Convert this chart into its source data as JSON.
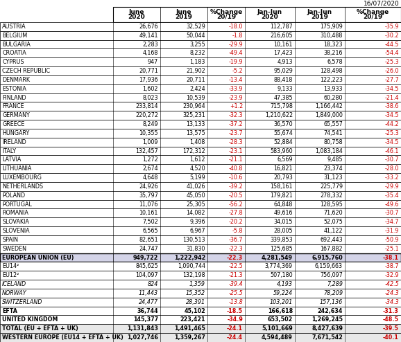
{
  "date_label": "16/07/2020",
  "col_headers_line1": [
    "June",
    "June",
    "%Change",
    "Jan-Jun",
    "Jan-Jun",
    "%Change"
  ],
  "col_headers_line2": [
    "2020",
    "2019",
    "20/19",
    "2020",
    "2019",
    "20/19"
  ],
  "rows": [
    [
      "AUSTRIA",
      "26,676",
      "32,529",
      "-18.0",
      "112,787",
      "175,909",
      "-35.9"
    ],
    [
      "BELGIUM",
      "49,141",
      "50,044",
      "-1.8",
      "216,605",
      "310,488",
      "-30.2"
    ],
    [
      "BULGARIA",
      "2,283",
      "3,255",
      "-29.9",
      "10,161",
      "18,323",
      "-44.5"
    ],
    [
      "CROATIA",
      "4,168",
      "8,232",
      "-49.4",
      "17,423",
      "38,216",
      "-54.4"
    ],
    [
      "CYPRUS",
      "947",
      "1,183",
      "-19.9",
      "4,913",
      "6,578",
      "-25.3"
    ],
    [
      "CZECH REPUBLIC",
      "20,771",
      "21,902",
      "-5.2",
      "95,029",
      "128,498",
      "-26.0"
    ],
    [
      "DENMARK",
      "17,936",
      "20,711",
      "-13.4",
      "88,418",
      "122,223",
      "-27.7"
    ],
    [
      "ESTONIA",
      "1,602",
      "2,424",
      "-33.9",
      "9,133",
      "13,933",
      "-34.5"
    ],
    [
      "FINLAND",
      "8,023",
      "10,539",
      "-23.9",
      "47,385",
      "60,280",
      "-21.4"
    ],
    [
      "FRANCE",
      "233,814",
      "230,964",
      "+1.2",
      "715,798",
      "1,166,442",
      "-38.6"
    ],
    [
      "GERMANY",
      "220,272",
      "325,231",
      "-32.3",
      "1,210,622",
      "1,849,000",
      "-34.5"
    ],
    [
      "GREECE",
      "8,249",
      "13,133",
      "-37.2",
      "36,570",
      "65,557",
      "-44.2"
    ],
    [
      "HUNGARY",
      "10,355",
      "13,575",
      "-23.7",
      "55,674",
      "74,541",
      "-25.3"
    ],
    [
      "IRELAND",
      "1,009",
      "1,408",
      "-28.3",
      "52,884",
      "80,758",
      "-34.5"
    ],
    [
      "ITALY",
      "132,457",
      "172,312",
      "-23.1",
      "583,960",
      "1,083,184",
      "-46.1"
    ],
    [
      "LATVIA",
      "1,272",
      "1,612",
      "-21.1",
      "6,569",
      "9,485",
      "-30.7"
    ],
    [
      "LITHUANIA",
      "2,674",
      "4,520",
      "-40.8",
      "16,821",
      "23,374",
      "-28.0"
    ],
    [
      "LUXEMBOURG",
      "4,648",
      "5,199",
      "-10.6",
      "20,793",
      "31,123",
      "-33.2"
    ],
    [
      "NETHERLANDS",
      "24,926",
      "41,026",
      "-39.2",
      "158,161",
      "225,779",
      "-29.9"
    ],
    [
      "POLAND",
      "35,797",
      "45,050",
      "-20.5",
      "179,821",
      "278,332",
      "-35.4"
    ],
    [
      "PORTUGAL",
      "11,076",
      "25,305",
      "-56.2",
      "64,848",
      "128,595",
      "-49.6"
    ],
    [
      "ROMANIA",
      "10,161",
      "14,082",
      "-27.8",
      "49,616",
      "71,620",
      "-30.7"
    ],
    [
      "SLOVAKIA",
      "7,502",
      "9,396",
      "-20.2",
      "34,015",
      "52,075",
      "-34.7"
    ],
    [
      "SLOVENIA",
      "6,565",
      "6,967",
      "-5.8",
      "28,005",
      "41,122",
      "-31.9"
    ],
    [
      "SPAIN",
      "82,651",
      "130,513",
      "-36.7",
      "339,853",
      "692,443",
      "-50.9"
    ],
    [
      "SWEDEN",
      "24,747",
      "31,830",
      "-22.3",
      "125,685",
      "167,882",
      "-25.1"
    ]
  ],
  "eu_row": [
    "EUROPEAN UNION (EU)",
    "949,722",
    "1,222,942",
    "-22.3",
    "4,281,549",
    "6,915,760",
    "-38.1"
  ],
  "eu14_row": [
    "EU14²",
    "845,625",
    "1,090,744",
    "-22.5",
    "3,774,369",
    "6,159,663",
    "-38.7"
  ],
  "eu12_row": [
    "EU12²",
    "104,097",
    "132,198",
    "-21.3",
    "507,180",
    "756,097",
    "-32.9"
  ],
  "iceland_row": [
    "ICELAND",
    "824",
    "1,359",
    "-39.4",
    "4,193",
    "7,289",
    "-42.5"
  ],
  "norway_row": [
    "NORWAY",
    "11,443",
    "15,352",
    "-25.5",
    "59,224",
    "78,209",
    "-24.3"
  ],
  "swiss_row": [
    "SWITZERLAND",
    "24,477",
    "28,391",
    "-13.8",
    "103,201",
    "157,136",
    "-34.3"
  ],
  "efta_row": [
    "EFTA",
    "36,744",
    "45,102",
    "-18.5",
    "166,618",
    "242,634",
    "-31.3"
  ],
  "uk_row": [
    "UNITED KINGDOM",
    "145,377",
    "223,421",
    "-34.9",
    "653,502",
    "1,269,245",
    "-48.5"
  ],
  "total_row": [
    "TOTAL (EU + EFTA + UK)",
    "1,131,843",
    "1,491,465",
    "-24.1",
    "5,101,669",
    "8,427,639",
    "-39.5"
  ],
  "west_row": [
    "WESTERN EUROPE (EU14 + EFTA + UK)",
    "1,027,746",
    "1,359,267",
    "-24.4",
    "4,594,489",
    "7,671,542",
    "-40.1"
  ],
  "bg_eu": "#d4d4e8",
  "bg_summary": "#e8e8e8",
  "bg_white": "#ffffff",
  "red": "#cc0000",
  "black": "#000000",
  "border": "#000000"
}
